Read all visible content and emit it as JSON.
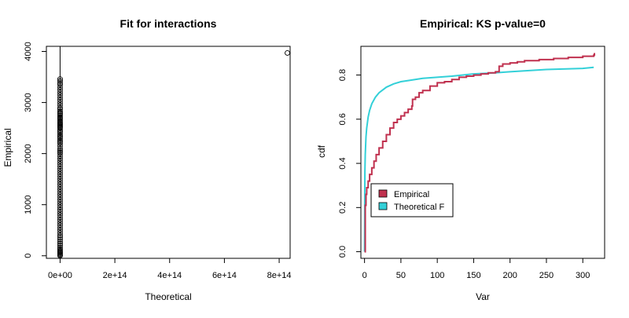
{
  "chart_data": [
    {
      "type": "scatter",
      "title": "Fit for interactions",
      "xlabel": "Theoretical",
      "ylabel": "Empirical",
      "xlim": [
        -50000000000000,
        840000000000000
      ],
      "ylim": [
        -50,
        4100
      ],
      "x_ticks": [
        0,
        200000000000000,
        400000000000000,
        600000000000000,
        800000000000000
      ],
      "x_tick_labels": [
        "0e+00",
        "2e+14",
        "4e+14",
        "6e+14",
        "8e+14"
      ],
      "y_ticks": [
        0,
        1000,
        2000,
        3000,
        4000
      ],
      "y_tick_labels": [
        "0",
        "1000",
        "2000",
        "3000",
        "4000"
      ],
      "reference_line": {
        "type": "vertical",
        "x": 0
      },
      "series": [
        {
          "x": [
            0,
            0,
            0,
            0,
            0,
            0,
            0,
            0,
            0,
            0,
            0,
            0,
            0,
            0,
            0,
            0,
            0,
            0,
            0,
            0,
            0,
            0,
            0,
            0,
            0,
            0,
            0,
            0,
            0,
            0,
            0,
            0,
            0,
            0,
            0,
            0,
            0,
            0,
            0,
            0,
            0,
            0,
            0,
            0,
            0,
            0,
            0,
            0,
            0,
            0,
            0,
            0,
            0,
            0,
            0,
            0,
            0,
            0,
            0,
            0,
            0,
            0,
            0,
            0,
            0,
            0,
            0,
            0,
            0,
            0,
            0,
            0,
            0,
            0,
            0,
            0,
            0,
            0,
            0,
            0,
            0,
            0,
            0,
            0,
            0,
            0,
            0,
            0,
            830000000000000
          ],
          "y": [
            0,
            20,
            40,
            60,
            80,
            100,
            130,
            160,
            200,
            240,
            280,
            320,
            360,
            400,
            450,
            500,
            550,
            600,
            650,
            700,
            750,
            800,
            850,
            900,
            950,
            1000,
            1050,
            1100,
            1150,
            1200,
            1250,
            1300,
            1350,
            1400,
            1450,
            1500,
            1550,
            1600,
            1650,
            1700,
            1750,
            1800,
            1850,
            1900,
            1950,
            2000,
            2030,
            2060,
            2100,
            2150,
            2200,
            2230,
            2260,
            2300,
            2330,
            2360,
            2400,
            2430,
            2460,
            2500,
            2520,
            2540,
            2560,
            2580,
            2600,
            2620,
            2650,
            2680,
            2700,
            2720,
            2750,
            2780,
            2800,
            2830,
            2870,
            2900,
            2950,
            3000,
            3050,
            3100,
            3150,
            3200,
            3250,
            3300,
            3350,
            3380,
            3420,
            3460,
            3970
          ]
        }
      ]
    },
    {
      "type": "line",
      "title": "Empirical: KS p-value=0",
      "xlabel": "Var",
      "ylabel": "cdf",
      "xlim": [
        -5,
        330
      ],
      "ylim": [
        -0.03,
        0.93
      ],
      "x_ticks": [
        0,
        50,
        100,
        150,
        200,
        250,
        300
      ],
      "x_tick_labels": [
        "0",
        "50",
        "100",
        "150",
        "200",
        "250",
        "300"
      ],
      "y_ticks": [
        0,
        0.2,
        0.4,
        0.6,
        0.8
      ],
      "y_tick_labels": [
        "0.0",
        "0.2",
        "0.4",
        "0.6",
        "0.8"
      ],
      "legend": "bottom-left",
      "series": [
        {
          "name": "Empirical",
          "color": "#c0314f",
          "style": "step",
          "x": [
            0,
            1,
            2,
            3,
            5,
            7,
            10,
            13,
            16,
            20,
            25,
            30,
            35,
            40,
            45,
            50,
            55,
            60,
            65,
            66,
            70,
            75,
            80,
            90,
            100,
            110,
            120,
            130,
            140,
            150,
            160,
            170,
            180,
            185,
            190,
            200,
            210,
            220,
            240,
            260,
            280,
            300,
            315,
            316
          ],
          "y": [
            0,
            0.21,
            0.26,
            0.29,
            0.32,
            0.35,
            0.38,
            0.41,
            0.44,
            0.47,
            0.5,
            0.53,
            0.56,
            0.585,
            0.6,
            0.615,
            0.63,
            0.645,
            0.66,
            0.69,
            0.7,
            0.72,
            0.73,
            0.75,
            0.765,
            0.77,
            0.78,
            0.79,
            0.795,
            0.8,
            0.805,
            0.81,
            0.815,
            0.84,
            0.85,
            0.855,
            0.86,
            0.865,
            0.87,
            0.875,
            0.88,
            0.885,
            0.89,
            0.9
          ]
        },
        {
          "name": "Theoretical F",
          "color": "#33d0d8",
          "style": "line",
          "x": [
            0,
            0.5,
            1,
            2,
            3,
            5,
            7,
            10,
            15,
            20,
            30,
            40,
            50,
            60,
            80,
            100,
            120,
            150,
            180,
            200,
            250,
            300,
            315
          ],
          "y": [
            0,
            0.36,
            0.44,
            0.52,
            0.56,
            0.61,
            0.64,
            0.67,
            0.7,
            0.72,
            0.745,
            0.76,
            0.77,
            0.775,
            0.785,
            0.79,
            0.795,
            0.805,
            0.81,
            0.815,
            0.825,
            0.83,
            0.835
          ]
        }
      ]
    }
  ]
}
